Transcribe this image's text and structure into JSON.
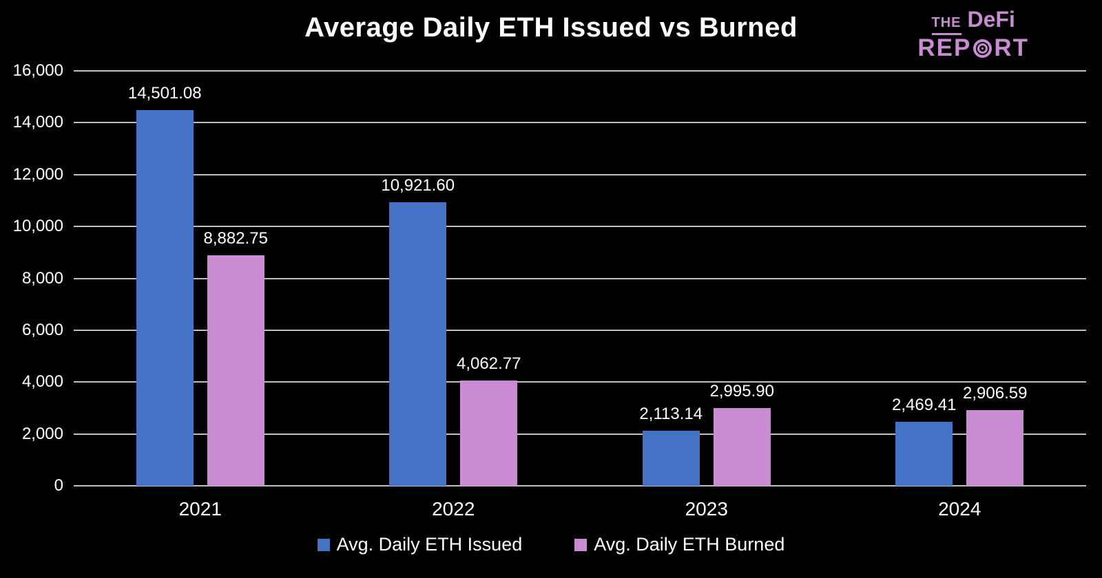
{
  "header": {
    "title": "Average Daily ETH Issued vs Burned"
  },
  "logo": {
    "word_the": "THE",
    "word_defi": "DeFi",
    "word_rep": "REP",
    "word_rt": "RT",
    "o_icon": "bullseye-icon",
    "color": "#C98BD2"
  },
  "chart_data": {
    "type": "bar",
    "title": "Average Daily ETH Issued vs Burned",
    "categories": [
      "2021",
      "2022",
      "2023",
      "2024"
    ],
    "series": [
      {
        "name": "Avg. Daily ETH Issued",
        "color": "#4472C4",
        "values": [
          14501.08,
          10921.6,
          2113.14,
          2469.41
        ],
        "value_labels": [
          "14,501.08",
          "10,921.60",
          "2,113.14",
          "2,469.41"
        ]
      },
      {
        "name": "Avg. Daily ETH Burned",
        "color": "#C98BD2",
        "values": [
          8882.75,
          4062.77,
          2995.9,
          2906.59
        ],
        "value_labels": [
          "8,882.75",
          "4,062.77",
          "2,995.90",
          "2,906.59"
        ]
      }
    ],
    "xlabel": "",
    "ylabel": "",
    "ylim": [
      0,
      16000
    ],
    "yticks": [
      0,
      2000,
      4000,
      6000,
      8000,
      10000,
      12000,
      14000,
      16000
    ],
    "ytick_labels": [
      "0",
      "2,000",
      "4,000",
      "6,000",
      "8,000",
      "10,000",
      "12,000",
      "14,000",
      "16,000"
    ],
    "grid": true,
    "legend_position": "bottom",
    "background_color": "#000000",
    "gridline_color": "#BFBFBF",
    "text_color": "#FFFFFF"
  }
}
